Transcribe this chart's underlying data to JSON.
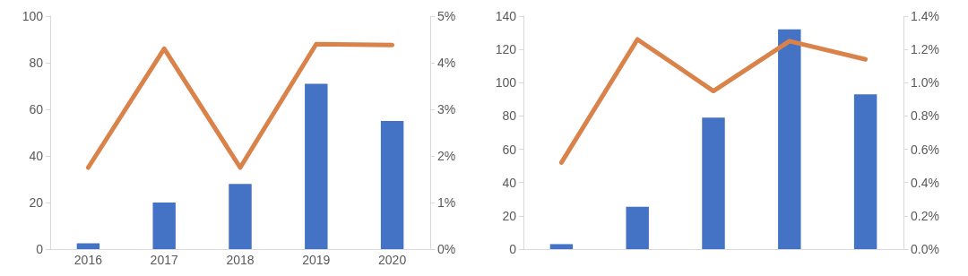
{
  "chart_data": [
    {
      "type": "bar",
      "categories": [
        "2016",
        "2017",
        "2018",
        "2019",
        "2020"
      ],
      "series": [
        {
          "color": "#4472c4",
          "values": [
            2.5,
            20,
            28,
            71,
            55
          ]
        },
        {
          "type": "line",
          "axis": "y2",
          "color": "#d9824a",
          "values": [
            1.75,
            4.3,
            1.75,
            4.4,
            4.38
          ]
        }
      ],
      "ylim": [
        0,
        100
      ],
      "yticks": [
        0,
        20,
        40,
        60,
        80,
        100
      ],
      "y2lim": [
        0,
        5
      ],
      "y2ticks": [
        {
          "value": 0,
          "label": "0%"
        },
        {
          "value": 1,
          "label": "1%"
        },
        {
          "value": 2,
          "label": "2%"
        },
        {
          "value": 3,
          "label": "3%"
        },
        {
          "value": 4,
          "label": "4%"
        },
        {
          "value": 5,
          "label": "5%"
        }
      ],
      "grid": false,
      "marker": "none",
      "line_style": "solid"
    },
    {
      "type": "bar",
      "categories": [
        null,
        null,
        null,
        null,
        null
      ],
      "series": [
        {
          "color": "#4472c4",
          "values": [
            3,
            25.5,
            79,
            132,
            93
          ]
        },
        {
          "type": "line",
          "axis": "y2",
          "color": "#d9824a",
          "values": [
            0.52,
            1.26,
            0.95,
            1.25,
            1.14
          ]
        }
      ],
      "ylim": [
        0,
        140
      ],
      "yticks": [
        0,
        20,
        40,
        60,
        80,
        100,
        120,
        140
      ],
      "y2lim": [
        0,
        1.4
      ],
      "y2ticks": [
        {
          "value": 0,
          "label": "0.0%"
        },
        {
          "value": 0.2,
          "label": "0.2%"
        },
        {
          "value": 0.4,
          "label": "0.4%"
        },
        {
          "value": 0.6,
          "label": "0.6%"
        },
        {
          "value": 0.8,
          "label": "0.8%"
        },
        {
          "value": 1,
          "label": "1.0%"
        },
        {
          "value": 1.2,
          "label": "1.2%"
        },
        {
          "value": 1.4,
          "label": "1.4%"
        }
      ],
      "grid": false,
      "marker": "none",
      "line_style": "solid"
    }
  ]
}
